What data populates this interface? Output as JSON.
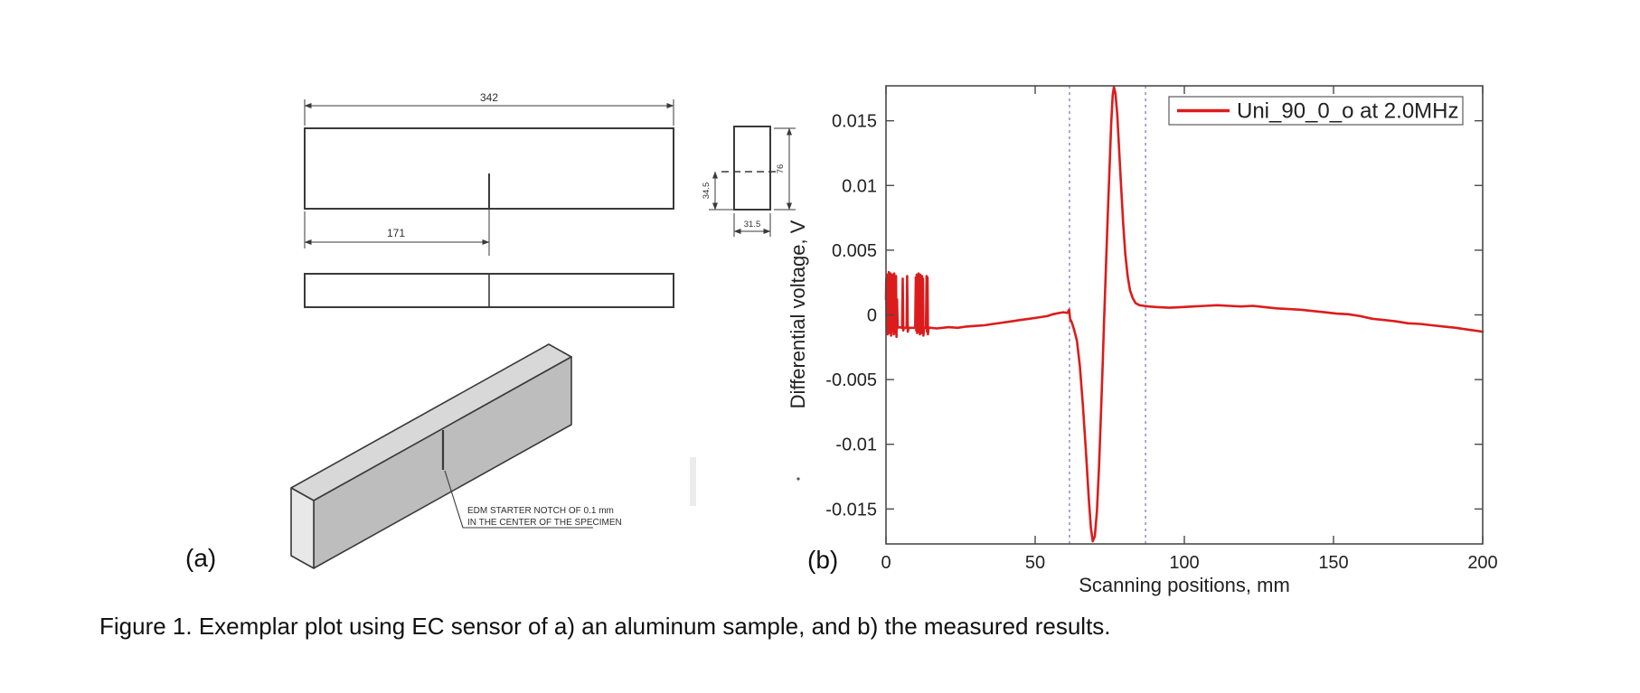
{
  "figure": {
    "caption": "Figure 1. Exemplar plot using EC sensor of a) an aluminum sample, and b) the measured results.",
    "panel_a_label": "(a)",
    "panel_b_label": "(b)"
  },
  "drawing": {
    "front_view": {
      "length": "342",
      "notch_offset": "171"
    },
    "side_view": {
      "notch_height": "34.5",
      "width": "31.5",
      "height": "76"
    },
    "note_line1": "EDM STARTER NOTCH OF 0.1 mm",
    "note_line2": "IN THE CENTER OF THE SPECIMEN"
  },
  "chart_data": {
    "type": "line",
    "title": "",
    "xlabel": "Scanning positions, mm",
    "ylabel": "Differential voltage, V",
    "xlim": [
      0,
      200
    ],
    "ylim": [
      -0.0177,
      0.0177
    ],
    "xticks": [
      0,
      50,
      100,
      150,
      200
    ],
    "yticks": [
      -0.015,
      -0.01,
      -0.005,
      0,
      0.005,
      0.01,
      0.015
    ],
    "grid": false,
    "legend": {
      "position": "top-right",
      "entries": [
        {
          "label": "Uni_90_0_o at 2.0MHz",
          "color": "#dc1c1c"
        }
      ]
    },
    "ref_lines": {
      "x": [
        61.5,
        87
      ],
      "style": "dashed",
      "color": "#8484cc"
    },
    "series": [
      {
        "name": "Uni_90_0_o at 2.0MHz",
        "color": "#dc1c1c",
        "points": [
          [
            0,
            0.0012
          ],
          [
            0.1,
            0.0028
          ],
          [
            0.2,
            -0.0013
          ],
          [
            0.35,
            0.0031
          ],
          [
            0.5,
            -0.0015
          ],
          [
            0.65,
            0.0029
          ],
          [
            0.8,
            -0.0011
          ],
          [
            0.95,
            0.0033
          ],
          [
            1.1,
            -0.0014
          ],
          [
            1.25,
            0.003
          ],
          [
            1.4,
            -0.0012
          ],
          [
            1.55,
            0.0032
          ],
          [
            1.7,
            -0.0016
          ],
          [
            1.85,
            0.0028
          ],
          [
            2.0,
            -0.001
          ],
          [
            2.15,
            0.0031
          ],
          [
            2.3,
            -0.0013
          ],
          [
            2.45,
            0.0029
          ],
          [
            2.6,
            -0.0015
          ],
          [
            2.75,
            0.0032
          ],
          [
            2.9,
            -0.0011
          ],
          [
            3.05,
            0.0027
          ],
          [
            3.2,
            -0.0014
          ],
          [
            3.35,
            0.003
          ],
          [
            3.5,
            -0.0017
          ],
          [
            3.7,
            0.0012
          ],
          [
            3.9,
            -0.001
          ],
          [
            4.5,
            -0.00095
          ],
          [
            5.4,
            -0.001
          ],
          [
            5.6,
            0.0028
          ],
          [
            5.8,
            -0.0012
          ],
          [
            6.0,
            -0.001
          ],
          [
            6.9,
            -0.001
          ],
          [
            7.1,
            0.003
          ],
          [
            7.3,
            -0.0013
          ],
          [
            7.6,
            -0.001
          ],
          [
            9.8,
            -0.001
          ],
          [
            10.0,
            0.0029
          ],
          [
            10.15,
            -0.0012
          ],
          [
            10.3,
            0.0031
          ],
          [
            10.45,
            -0.0014
          ],
          [
            10.6,
            0.0028
          ],
          [
            10.75,
            -0.0011
          ],
          [
            10.9,
            0.0032
          ],
          [
            11.05,
            -0.0013
          ],
          [
            11.2,
            0.0029
          ],
          [
            11.35,
            -0.0015
          ],
          [
            11.5,
            0.0031
          ],
          [
            11.65,
            -0.0012
          ],
          [
            11.8,
            0.0027
          ],
          [
            11.95,
            -0.0014
          ],
          [
            12.1,
            0.003
          ],
          [
            12.25,
            -0.0011
          ],
          [
            12.4,
            0.0028
          ],
          [
            12.55,
            -0.0016
          ],
          [
            12.75,
            -0.001
          ],
          [
            13.4,
            -0.001
          ],
          [
            13.6,
            0.003
          ],
          [
            13.75,
            -0.0013
          ],
          [
            13.9,
            0.0029
          ],
          [
            14.05,
            -0.0015
          ],
          [
            14.25,
            -0.001
          ],
          [
            15,
            -0.001
          ],
          [
            17,
            -0.00105
          ],
          [
            19,
            -0.001
          ],
          [
            21,
            -0.00095
          ],
          [
            24,
            -0.001
          ],
          [
            27,
            -0.0009
          ],
          [
            30,
            -0.00085
          ],
          [
            33,
            -0.0008
          ],
          [
            36,
            -0.0007
          ],
          [
            39,
            -0.0006
          ],
          [
            42,
            -0.0005
          ],
          [
            45,
            -0.0004
          ],
          [
            48,
            -0.0003
          ],
          [
            51,
            -0.0002
          ],
          [
            54,
            -0.0001
          ],
          [
            56,
            5e-05
          ],
          [
            58,
            0.00015
          ],
          [
            59.5,
            0.0002
          ],
          [
            60.8,
            0.00015
          ],
          [
            61.4,
            0.0004
          ],
          [
            61.7,
            -0.0003
          ],
          [
            62.3,
            -0.0006
          ],
          [
            63,
            -0.0011
          ],
          [
            64,
            -0.002
          ],
          [
            65,
            -0.004
          ],
          [
            66,
            -0.007
          ],
          [
            67,
            -0.0105
          ],
          [
            68,
            -0.0143
          ],
          [
            68.7,
            -0.0165
          ],
          [
            69.3,
            -0.0175
          ],
          [
            70,
            -0.0171
          ],
          [
            70.7,
            -0.0152
          ],
          [
            71.4,
            -0.0118
          ],
          [
            72,
            -0.008
          ],
          [
            72.6,
            -0.004
          ],
          [
            73.1,
            -0.0005
          ],
          [
            73.7,
            0.0035
          ],
          [
            74.3,
            0.0075
          ],
          [
            74.9,
            0.0112
          ],
          [
            75.5,
            0.0148
          ],
          [
            76.0,
            0.017
          ],
          [
            76.4,
            0.0176
          ],
          [
            76.9,
            0.0171
          ],
          [
            77.5,
            0.0155
          ],
          [
            78.1,
            0.013
          ],
          [
            78.8,
            0.01
          ],
          [
            79.5,
            0.007
          ],
          [
            80.2,
            0.0047
          ],
          [
            81,
            0.003
          ],
          [
            81.8,
            0.0019
          ],
          [
            82.7,
            0.0013
          ],
          [
            83.7,
            0.0009
          ],
          [
            85,
            0.00075
          ],
          [
            86.5,
            0.0007
          ],
          [
            88,
            0.00065
          ],
          [
            91,
            0.0006
          ],
          [
            95,
            0.00055
          ],
          [
            99,
            0.0006
          ],
          [
            103,
            0.00065
          ],
          [
            107,
            0.0007
          ],
          [
            111,
            0.00075
          ],
          [
            115,
            0.0007
          ],
          [
            119,
            0.00065
          ],
          [
            123,
            0.0007
          ],
          [
            127,
            0.0006
          ],
          [
            131,
            0.0005
          ],
          [
            135,
            0.00045
          ],
          [
            139,
            0.0004
          ],
          [
            143,
            0.0003
          ],
          [
            147,
            0.0002
          ],
          [
            151,
            0.0001
          ],
          [
            155,
            5e-05
          ],
          [
            159,
            -0.0001
          ],
          [
            163,
            -0.0003
          ],
          [
            167,
            -0.0004
          ],
          [
            171,
            -0.0005
          ],
          [
            175,
            -0.00065
          ],
          [
            179,
            -0.0007
          ],
          [
            183,
            -0.0008
          ],
          [
            187,
            -0.0009
          ],
          [
            191,
            -0.001
          ],
          [
            194,
            -0.0011
          ],
          [
            197,
            -0.0012
          ],
          [
            200,
            -0.0013
          ]
        ]
      }
    ]
  }
}
